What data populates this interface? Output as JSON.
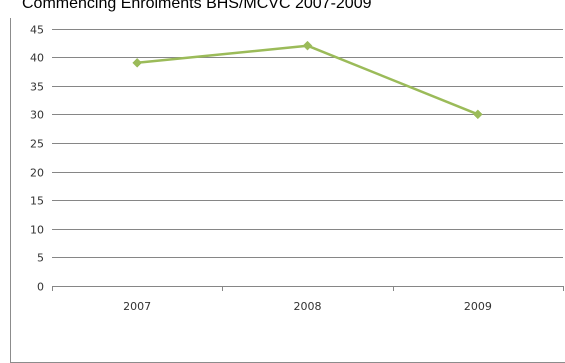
{
  "chart_data": {
    "type": "line",
    "title": "Commencing Enrolments BHS/MCVC 2007-2009",
    "xlabel": "",
    "ylabel": "",
    "categories": [
      "2007",
      "2008",
      "2009"
    ],
    "series": [
      {
        "values": [
          39,
          42,
          30
        ]
      }
    ],
    "ylim": [
      0,
      45
    ],
    "yticks": [
      "0",
      "5",
      "10",
      "15",
      "20",
      "25",
      "30",
      "35",
      "40",
      "45"
    ],
    "grid": true,
    "legend": "none",
    "colors": {
      "line": "#9bbb59",
      "grid": "#868686",
      "axis": "#868686"
    }
  }
}
